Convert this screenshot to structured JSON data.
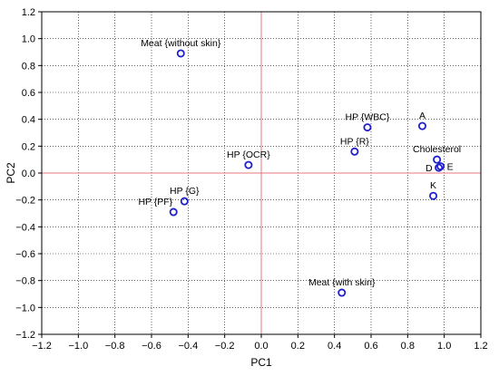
{
  "chart_data": {
    "type": "scatter",
    "title": "",
    "xlabel": "PC1",
    "ylabel": "PC2",
    "xlim": [
      -1.2,
      1.2
    ],
    "ylim": [
      -1.2,
      1.2
    ],
    "xticks": [
      "−1.2",
      "−1.0",
      "−0.8",
      "−0.6",
      "−0.4",
      "−0.2",
      "0.0",
      "0.2",
      "0.4",
      "0.6",
      "0.8",
      "1.0",
      "1.2"
    ],
    "yticks": [
      "−1.2",
      "−1.0",
      "−0.8",
      "−0.6",
      "−0.4",
      "−0.2",
      "0.0",
      "0.2",
      "0.4",
      "0.6",
      "0.8",
      "1.0",
      "1.2"
    ],
    "grid": true,
    "reference_lines": {
      "x": 0,
      "y": 0,
      "color": "#e8747c"
    },
    "marker_color": "#1f1fcc",
    "points": [
      {
        "label": "Meat {without skin}",
        "x": -0.44,
        "y": 0.89,
        "label_pos": "above"
      },
      {
        "label": "HP {WBC}",
        "x": 0.58,
        "y": 0.34,
        "label_pos": "above"
      },
      {
        "label": "A",
        "x": 0.88,
        "y": 0.35,
        "label_pos": "above"
      },
      {
        "label": "HP {R}",
        "x": 0.51,
        "y": 0.16,
        "label_pos": "above"
      },
      {
        "label": "Cholesterol",
        "x": 0.96,
        "y": 0.1,
        "label_pos": "above"
      },
      {
        "label": "D",
        "x": 0.97,
        "y": 0.04,
        "label_pos": "left"
      },
      {
        "label": "E",
        "x": 0.98,
        "y": 0.05,
        "label_pos": "right"
      },
      {
        "label": "HP {OCR}",
        "x": -0.07,
        "y": 0.06,
        "label_pos": "above"
      },
      {
        "label": "K",
        "x": 0.94,
        "y": -0.17,
        "label_pos": "above"
      },
      {
        "label": "HP {G}",
        "x": -0.42,
        "y": -0.21,
        "label_pos": "above"
      },
      {
        "label": "HP {PF}",
        "x": -0.48,
        "y": -0.29,
        "label_pos": "aboveleft"
      },
      {
        "label": "Meat {with skin}",
        "x": 0.44,
        "y": -0.89,
        "label_pos": "above"
      }
    ]
  }
}
